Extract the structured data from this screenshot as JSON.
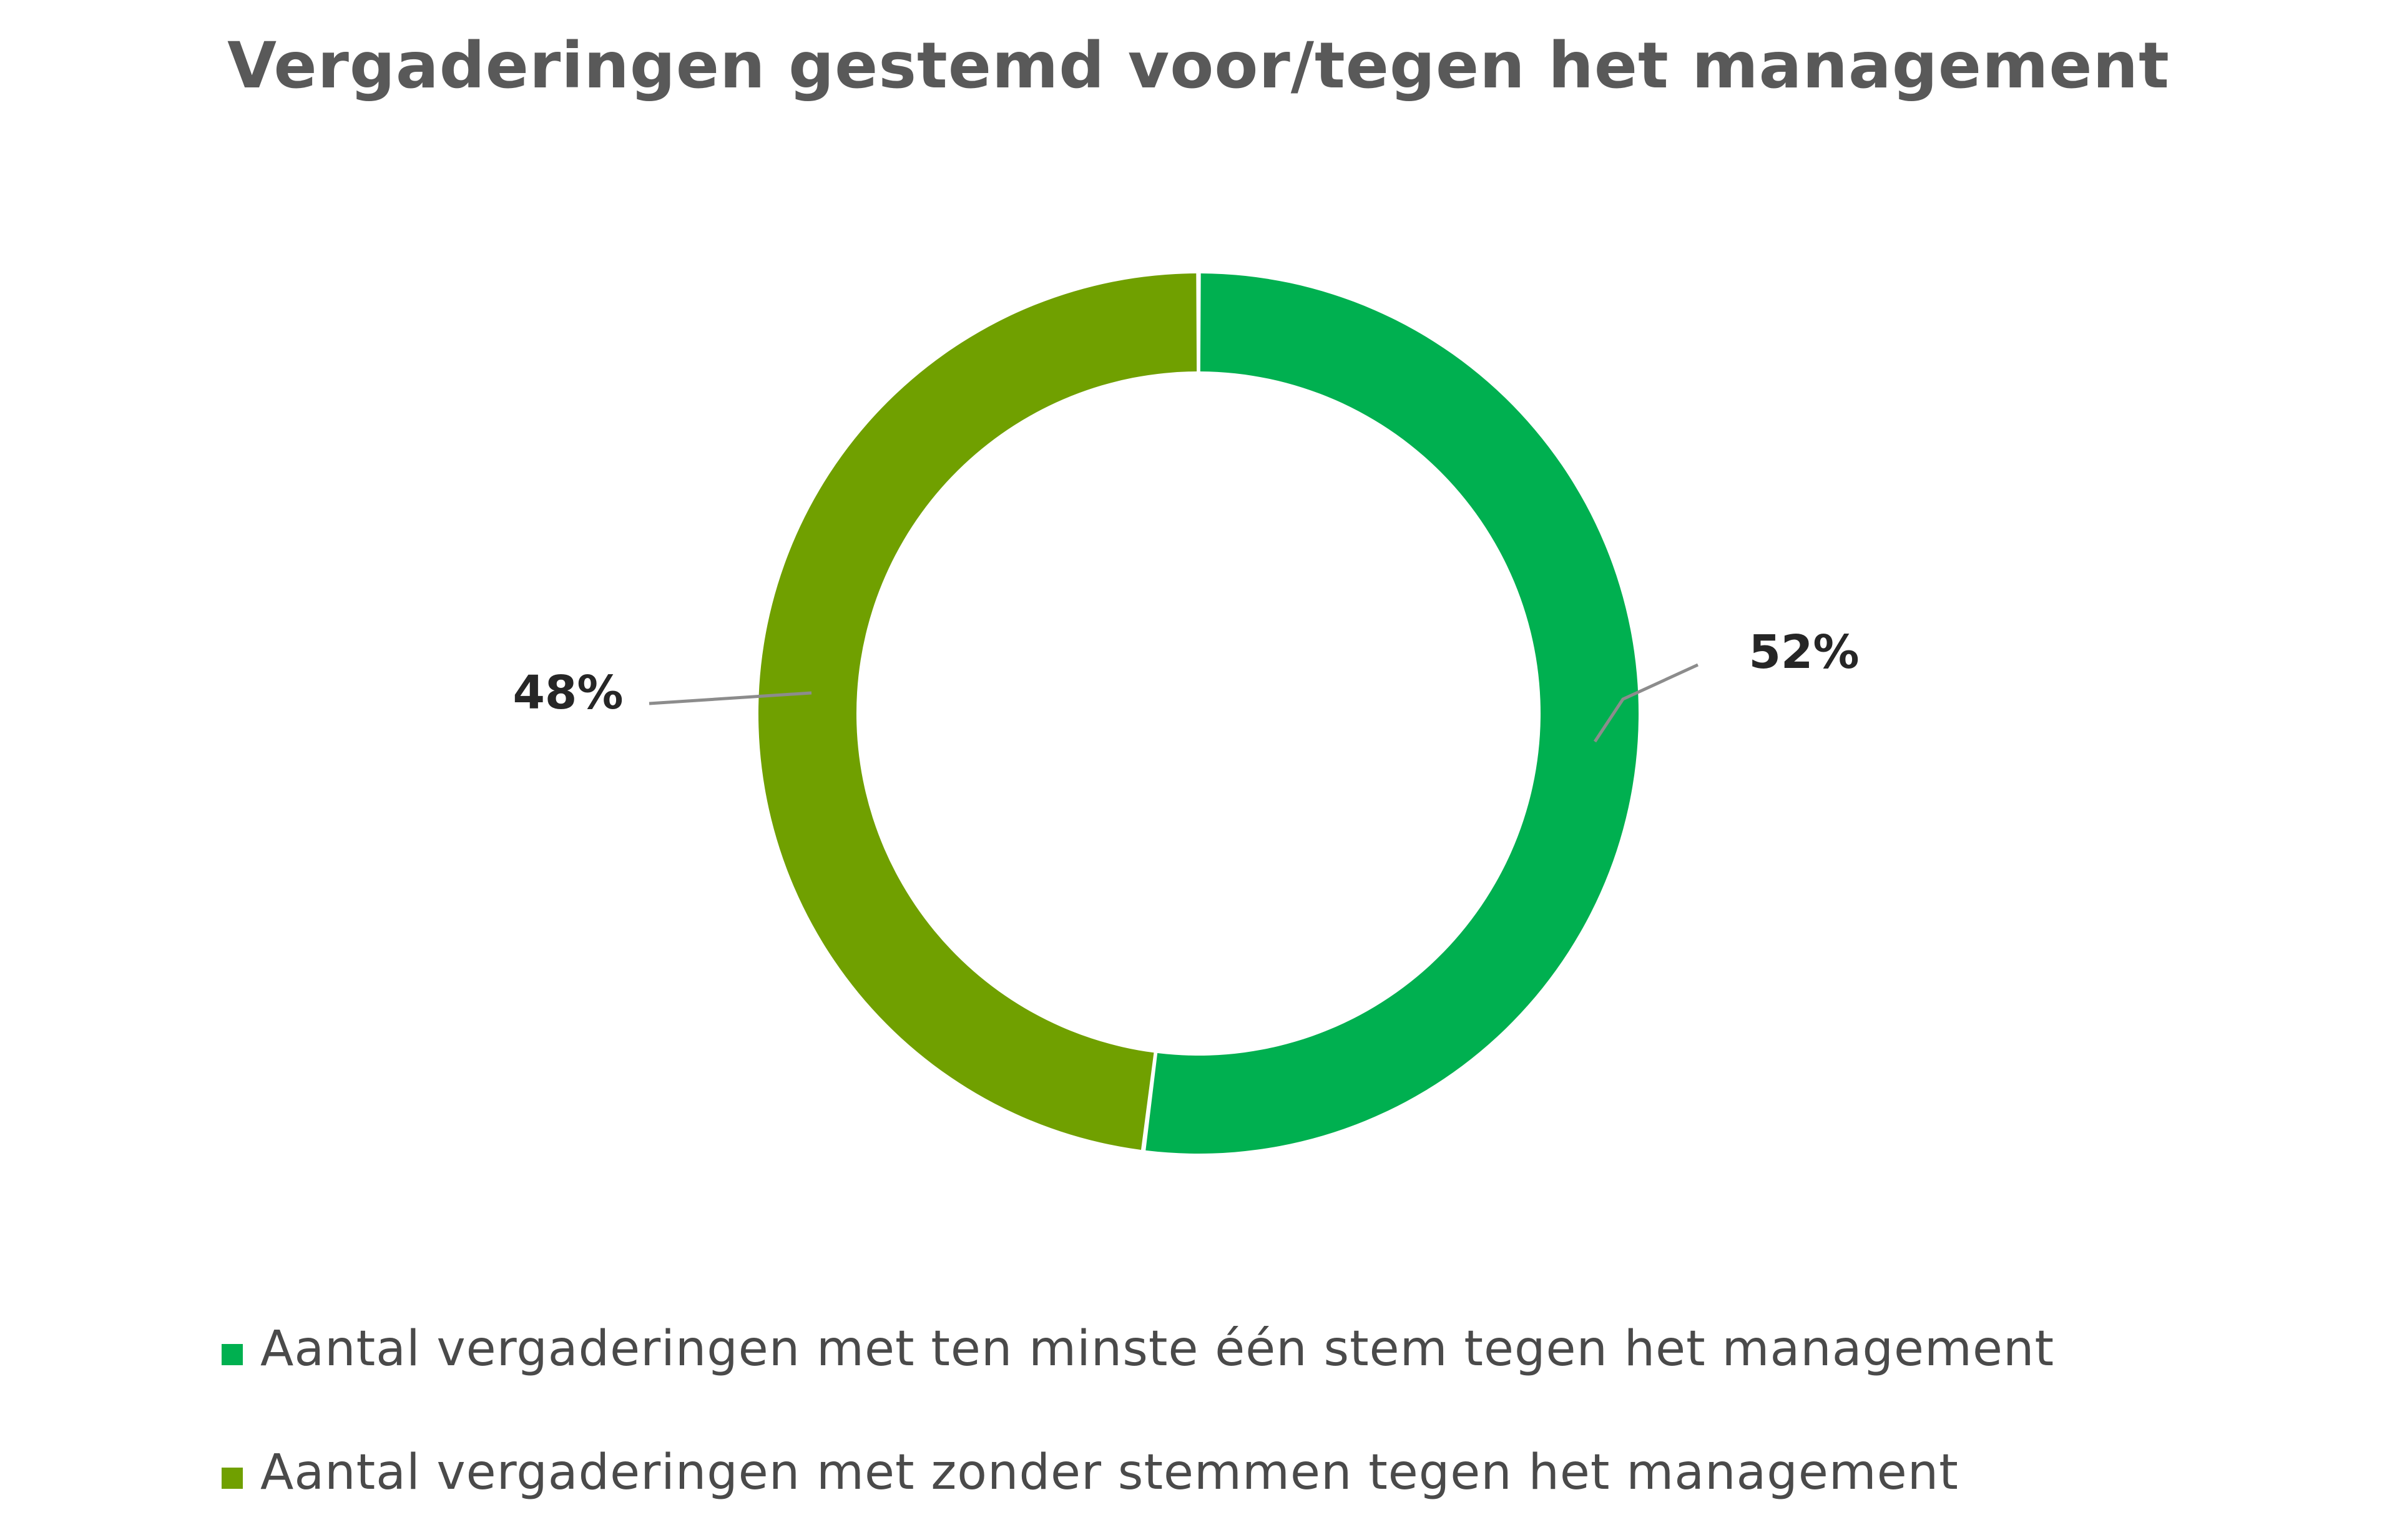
{
  "chart_data": {
    "type": "pie",
    "variant": "donut",
    "title": "Vergaderingen gestemd voor/tegen het management",
    "start_angle_deg": 0,
    "direction": "clockwise",
    "legend_position": "bottom",
    "slices": [
      {
        "name": "Aantal vergaderingen met ten minste één stem tegen het management",
        "value": 52,
        "label": "52%",
        "color": "#00b050"
      },
      {
        "name": "Aantal vergaderingen met zonder stemmen tegen het management",
        "value": 48,
        "label": "48%",
        "color": "#70a000"
      }
    ]
  }
}
